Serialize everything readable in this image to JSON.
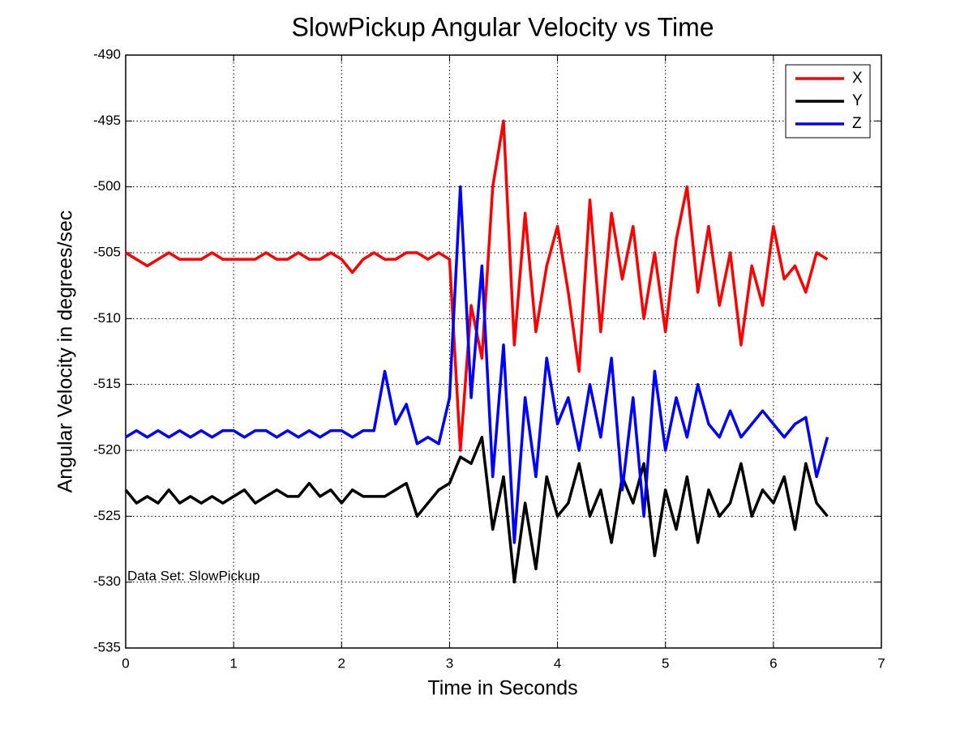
{
  "chart_data": {
    "type": "line",
    "title": "SlowPickup Angular Velocity vs Time",
    "x_label": "Time in Seconds",
    "y_label": "Angular Velocity in degrees/sec",
    "annotation": {
      "text": "Data Set: SlowPickup",
      "x": 0,
      "y": -529.6
    },
    "x": [
      0,
      0.1,
      0.2,
      0.3,
      0.4,
      0.5,
      0.6,
      0.7,
      0.8,
      0.9,
      1.0,
      1.1,
      1.2,
      1.3,
      1.4,
      1.5,
      1.6,
      1.7,
      1.8,
      1.9,
      2.0,
      2.1,
      2.2,
      2.3,
      2.4,
      2.5,
      2.6,
      2.7,
      2.8,
      2.9,
      3.0,
      3.1,
      3.2,
      3.3,
      3.4,
      3.5,
      3.6,
      3.7,
      3.8,
      3.9,
      4.0,
      4.1,
      4.2,
      4.3,
      4.4,
      4.5,
      4.6,
      4.7,
      4.8,
      4.9,
      5.0,
      5.1,
      5.2,
      5.3,
      5.4,
      5.5,
      5.6,
      5.7,
      5.8,
      5.9,
      6.0,
      6.1,
      6.2,
      6.3,
      6.4,
      6.5
    ],
    "series": [
      {
        "name": "X",
        "color": "#ff0000",
        "values": [
          -505,
          -505.5,
          -506,
          -505.5,
          -505,
          -505.5,
          -505.5,
          -505.5,
          -505,
          -505.5,
          -505.5,
          -505.5,
          -505.5,
          -505,
          -505.5,
          -505.5,
          -505,
          -505.5,
          -505.5,
          -505,
          -505.5,
          -506.5,
          -505.5,
          -505,
          -505.5,
          -505.5,
          -505,
          -505,
          -505.5,
          -505,
          -505.5,
          -520,
          -509,
          -513,
          -500,
          -495,
          -512,
          -502,
          -511,
          -506,
          -503,
          -508,
          -514,
          -501,
          -511,
          -502,
          -507,
          -503,
          -510,
          -505,
          -511,
          -504,
          -500,
          -508,
          -503,
          -509,
          -505,
          -512,
          -506,
          -509,
          -503,
          -507,
          -506,
          -508,
          -505,
          -505.5
        ]
      },
      {
        "name": "Y",
        "color": "#000000",
        "values": [
          -523,
          -524,
          -523.5,
          -524,
          -523,
          -524,
          -523.5,
          -524,
          -523.5,
          -524,
          -523.5,
          -523,
          -524,
          -523.5,
          -523,
          -523.5,
          -523.5,
          -522.5,
          -523.5,
          -523,
          -524,
          -523,
          -523.5,
          -523.5,
          -523.5,
          -523,
          -522.5,
          -525,
          -524,
          -523,
          -522.5,
          -520.5,
          -521,
          -519,
          -526,
          -522,
          -530,
          -524,
          -529,
          -522,
          -525,
          -524,
          -521,
          -525,
          -523,
          -527,
          -522,
          -524,
          -521,
          -528,
          -523,
          -526,
          -522,
          -527,
          -523,
          -525,
          -524,
          -521,
          -525,
          -523,
          -524,
          -522,
          -526,
          -521,
          -524,
          -525
        ]
      },
      {
        "name": "Z",
        "color": "#0000ff",
        "values": [
          -519,
          -518.5,
          -519,
          -518.5,
          -519,
          -518.5,
          -519,
          -518.5,
          -519,
          -518.5,
          -518.5,
          -519,
          -518.5,
          -518.5,
          -519,
          -518.5,
          -519,
          -518.5,
          -519,
          -518.5,
          -518.5,
          -519,
          -518.5,
          -518.5,
          -514,
          -518,
          -516.5,
          -519.5,
          -519,
          -519.5,
          -516,
          -500,
          -516,
          -506,
          -522,
          -512,
          -527,
          -516,
          -522,
          -513,
          -518,
          -516,
          -520,
          -515,
          -519,
          -513,
          -523,
          -516,
          -525,
          -514,
          -520,
          -516,
          -519,
          -515,
          -518,
          -519,
          -517,
          -519,
          -518,
          -517,
          -518,
          -519,
          -518,
          -517.5,
          -522,
          -519
        ]
      }
    ],
    "xlim": [
      0,
      7
    ],
    "xticks": [
      0,
      1,
      2,
      3,
      4,
      5,
      6,
      7
    ],
    "ylim": [
      -535,
      -490
    ],
    "yticks": [
      -535,
      -530,
      -525,
      -520,
      -515,
      -510,
      -505,
      -500,
      -495,
      -490
    ],
    "grid": true,
    "legend": "northeast"
  }
}
